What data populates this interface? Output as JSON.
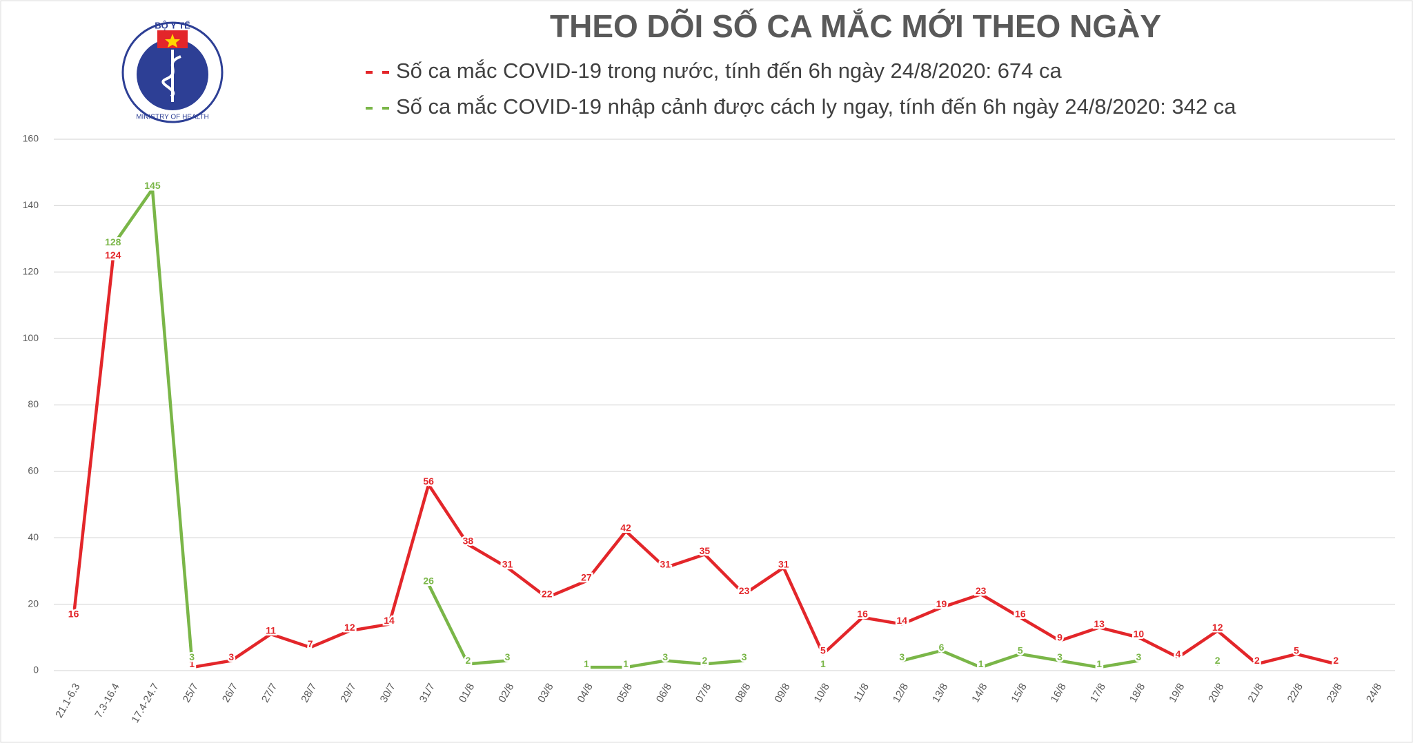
{
  "chart_data": {
    "type": "line",
    "title": "THEO DÕI SỐ CA MẮC MỚI THEO NGÀY",
    "logo_top": "BỘ Y TẾ",
    "logo_bottom": "MINISTRY OF HEALTH",
    "categories": [
      "21.1-6.3",
      "7.3-16.4",
      "17.4-24.7",
      "25/7",
      "26/7",
      "27/7",
      "28/7",
      "29/7",
      "30/7",
      "31/7",
      "01/8",
      "02/8",
      "03/8",
      "04/8",
      "05/8",
      "06/8",
      "07/8",
      "08/8",
      "09/8",
      "10/8",
      "11/8",
      "12/8",
      "13/8",
      "14/8",
      "15/8",
      "16/8",
      "17/8",
      "18/8",
      "19/8",
      "20/8",
      "21/8",
      "22/8",
      "23/8",
      "24/8"
    ],
    "series": [
      {
        "name": "Số ca mắc COVID-19 trong nước, tính đến 6h ngày 24/8/2020: 674 ca",
        "color": "#e3262a",
        "values": [
          16,
          124,
          null,
          1,
          3,
          11,
          7,
          12,
          14,
          56,
          38,
          31,
          22,
          27,
          42,
          31,
          35,
          23,
          31,
          5,
          16,
          14,
          19,
          23,
          16,
          9,
          13,
          10,
          4,
          12,
          2,
          5,
          2,
          null
        ]
      },
      {
        "name": "Số ca mắc COVID-19 nhập cảnh được cách ly ngay, tính đến 6h ngày 24/8/2020: 342 ca",
        "color": "#7ab648",
        "values": [
          null,
          128,
          145,
          3,
          null,
          null,
          null,
          null,
          null,
          26,
          2,
          3,
          null,
          1,
          1,
          3,
          2,
          3,
          null,
          1,
          null,
          3,
          6,
          1,
          5,
          3,
          1,
          3,
          null,
          2,
          null,
          null,
          null,
          null
        ]
      }
    ],
    "ylim": [
      0,
      160
    ],
    "yticks": [
      0,
      20,
      40,
      60,
      80,
      100,
      120,
      140,
      160
    ],
    "grid": true
  }
}
